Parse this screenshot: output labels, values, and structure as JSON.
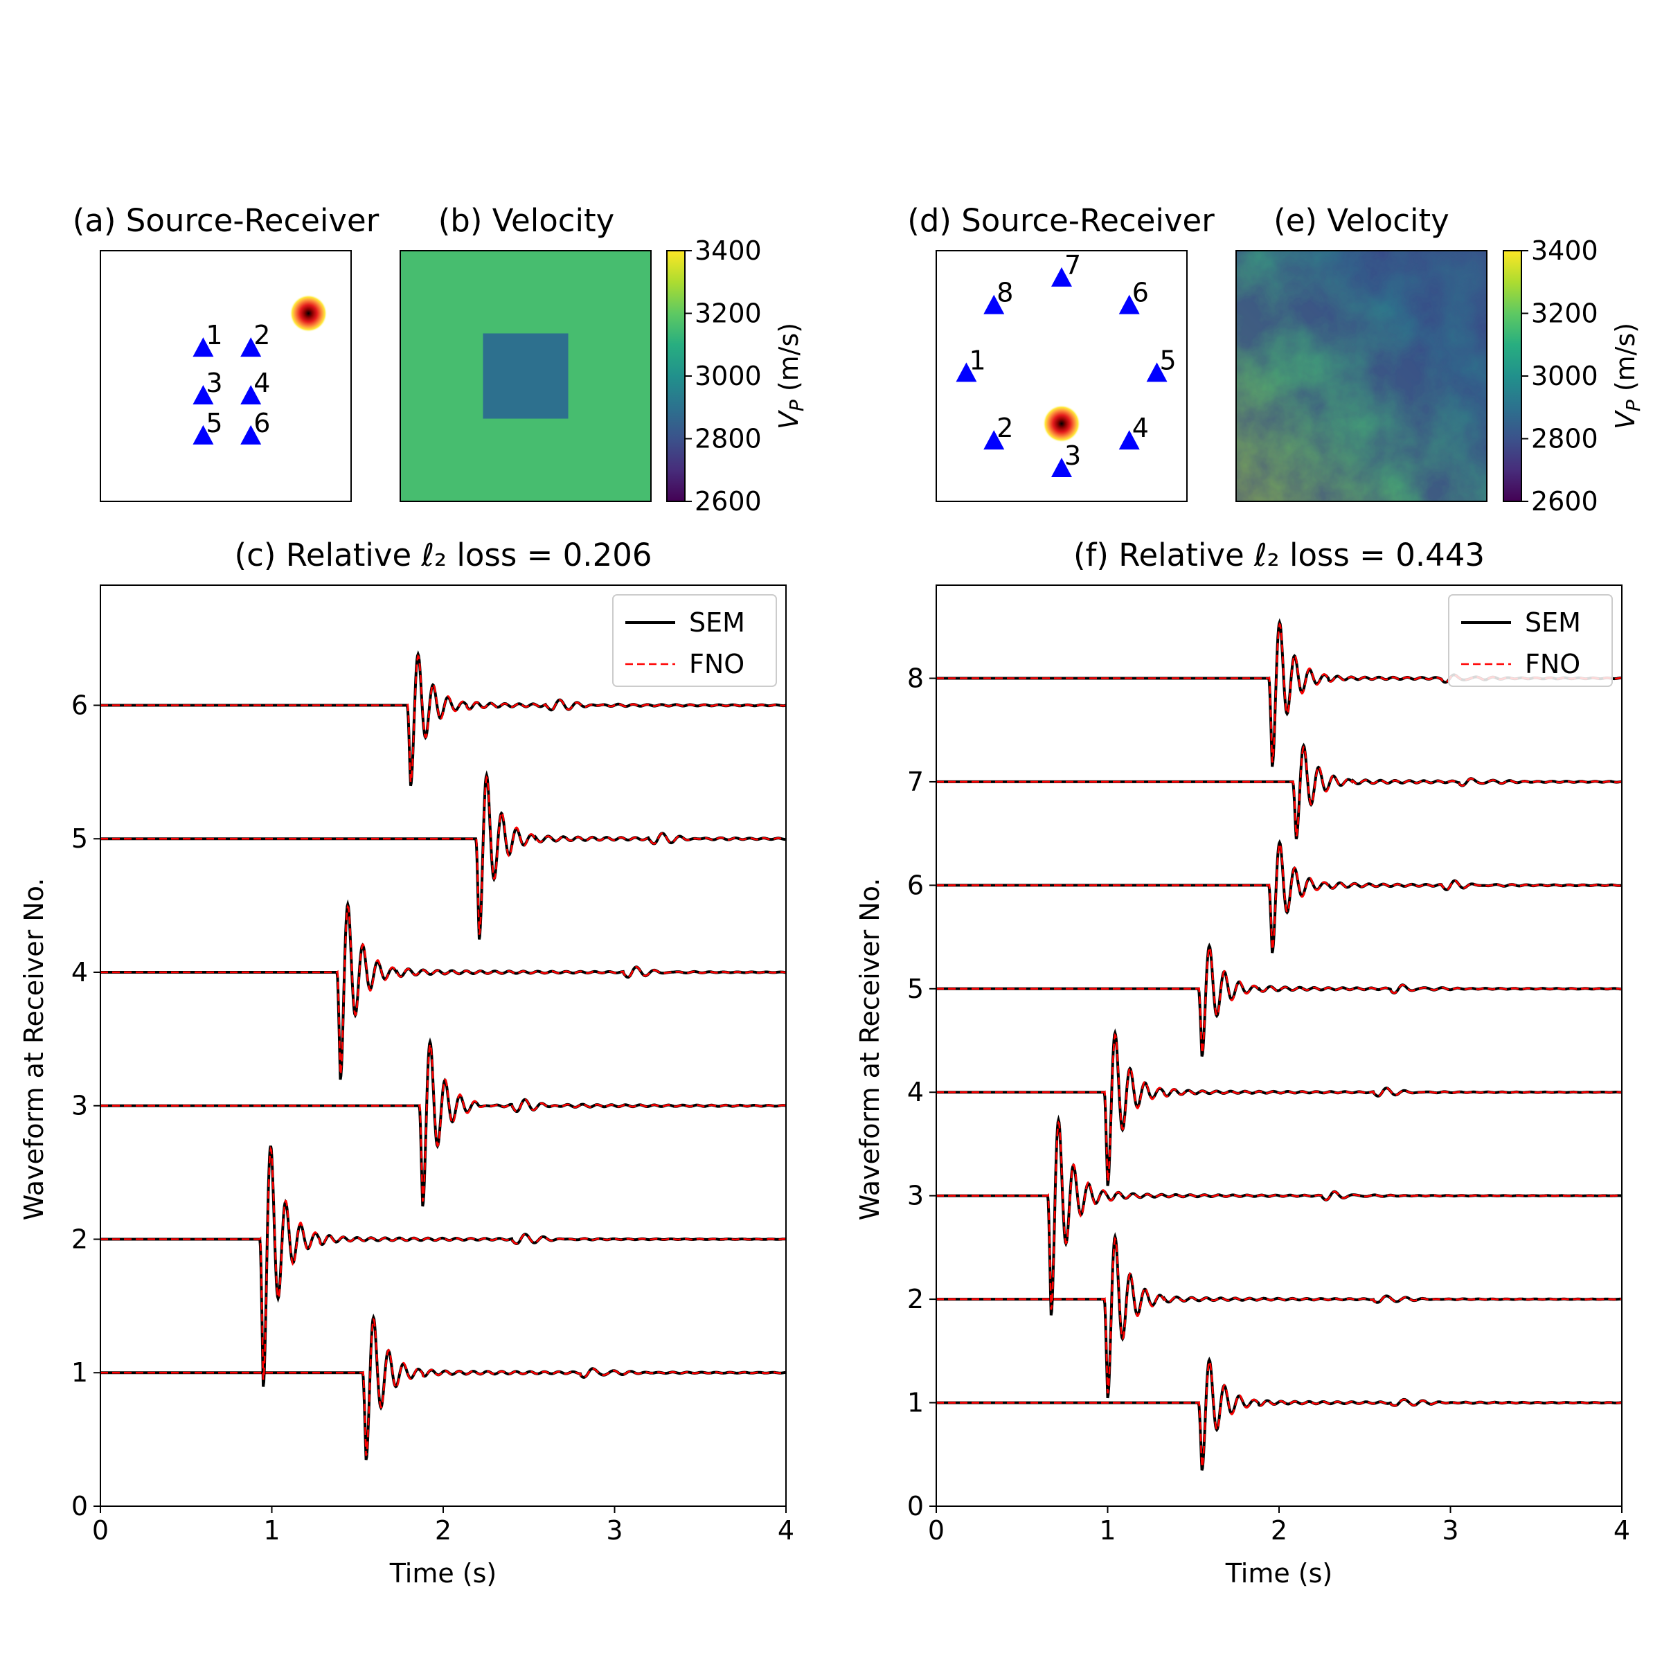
{
  "chart_data": [
    {
      "type": "scatter",
      "panel": "a",
      "title": "(a) Source-Receiver",
      "source": {
        "x": 0.83,
        "y": 0.75
      },
      "receivers": [
        {
          "label": "1",
          "x": 0.41,
          "y": 0.61
        },
        {
          "label": "2",
          "x": 0.6,
          "y": 0.61
        },
        {
          "label": "3",
          "x": 0.41,
          "y": 0.42
        },
        {
          "label": "4",
          "x": 0.6,
          "y": 0.42
        },
        {
          "label": "5",
          "x": 0.41,
          "y": 0.26
        },
        {
          "label": "6",
          "x": 0.6,
          "y": 0.26
        }
      ],
      "marker_color": "#0000ff"
    },
    {
      "type": "heatmap",
      "panel": "b",
      "title": "(b) Velocity",
      "background_value": 3000,
      "inclusion": {
        "x0": 0.33,
        "x1": 0.67,
        "y0": 0.33,
        "y1": 0.67,
        "value": 2800
      },
      "colorbar": {
        "label": "V_P (m/s)",
        "ticks": [
          "3400",
          "3200",
          "3000",
          "2800",
          "2600"
        ],
        "min": 2600,
        "max": 3400,
        "cmap": "viridis"
      }
    },
    {
      "type": "line",
      "panel": "c",
      "title": "(c) Relative ℓ₂ loss = 0.206",
      "xlabel": "Time (s)",
      "ylabel": "Waveform at Receiver No.",
      "xlim": [
        0,
        4
      ],
      "ylim": [
        0,
        6.9
      ],
      "xticks": [
        "0",
        "1",
        "2",
        "3",
        "4"
      ],
      "yticks": [
        "0",
        "1",
        "2",
        "3",
        "4",
        "5",
        "6"
      ],
      "legend": {
        "position": "top-right",
        "entries": [
          "SEM",
          "FNO"
        ]
      },
      "series": [
        {
          "name": "SEM",
          "color": "#000000",
          "style": "solid"
        },
        {
          "name": "FNO",
          "color": "#ff0000",
          "style": "dashed"
        }
      ],
      "traces": [
        {
          "receiver": 1,
          "arrival": 1.53,
          "amplitude": 0.65,
          "late_arrival": 2.85
        },
        {
          "receiver": 2,
          "arrival": 0.93,
          "amplitude": 1.1,
          "late_arrival": 2.45
        },
        {
          "receiver": 3,
          "arrival": 1.86,
          "amplitude": 0.75,
          "late_arrival": 2.45
        },
        {
          "receiver": 4,
          "arrival": 1.38,
          "amplitude": 0.8,
          "late_arrival": 3.1
        },
        {
          "receiver": 5,
          "arrival": 2.19,
          "amplitude": 0.75,
          "late_arrival": 3.25
        },
        {
          "receiver": 6,
          "arrival": 1.79,
          "amplitude": 0.6,
          "late_arrival": 2.65
        }
      ]
    },
    {
      "type": "scatter",
      "panel": "d",
      "title": "(d) Source-Receiver",
      "source": {
        "x": 0.5,
        "y": 0.31
      },
      "receivers": [
        {
          "label": "1",
          "x": 0.12,
          "y": 0.51
        },
        {
          "label": "2",
          "x": 0.23,
          "y": 0.24
        },
        {
          "label": "3",
          "x": 0.5,
          "y": 0.13
        },
        {
          "label": "4",
          "x": 0.77,
          "y": 0.24
        },
        {
          "label": "5",
          "x": 0.88,
          "y": 0.51
        },
        {
          "label": "6",
          "x": 0.77,
          "y": 0.78
        },
        {
          "label": "7",
          "x": 0.5,
          "y": 0.89
        },
        {
          "label": "8",
          "x": 0.23,
          "y": 0.78
        }
      ],
      "marker_color": "#0000ff"
    },
    {
      "type": "heatmap",
      "panel": "e",
      "title": "(e) Velocity",
      "field": "random",
      "colorbar": {
        "label": "V_P (m/s)",
        "ticks": [
          "3400",
          "3200",
          "3000",
          "2800",
          "2600"
        ],
        "min": 2600,
        "max": 3400,
        "cmap": "viridis"
      }
    },
    {
      "type": "line",
      "panel": "f",
      "title": "(f) Relative ℓ₂ loss = 0.443",
      "xlabel": "Time (s)",
      "ylabel": "Waveform at Receiver No.",
      "xlim": [
        0,
        4
      ],
      "ylim": [
        0,
        8.9
      ],
      "xticks": [
        "0",
        "1",
        "2",
        "3",
        "4"
      ],
      "yticks": [
        "0",
        "1",
        "2",
        "3",
        "4",
        "5",
        "6",
        "7",
        "8"
      ],
      "legend": {
        "position": "top-right",
        "entries": [
          "SEM",
          "FNO"
        ]
      },
      "series": [
        {
          "name": "SEM",
          "color": "#000000",
          "style": "solid"
        },
        {
          "name": "FNO",
          "color": "#ff0000",
          "style": "dashed"
        }
      ],
      "traces": [
        {
          "receiver": 1,
          "arrival": 1.53,
          "amplitude": 0.65,
          "late_arrival": 2.7
        },
        {
          "receiver": 2,
          "arrival": 0.98,
          "amplitude": 0.95,
          "late_arrival": 2.6
        },
        {
          "receiver": 3,
          "arrival": 0.65,
          "amplitude": 1.15,
          "late_arrival": 2.3
        },
        {
          "receiver": 4,
          "arrival": 0.98,
          "amplitude": 0.9,
          "late_arrival": 2.6
        },
        {
          "receiver": 5,
          "arrival": 1.53,
          "amplitude": 0.65,
          "late_arrival": 2.7
        },
        {
          "receiver": 6,
          "arrival": 1.94,
          "amplitude": 0.65,
          "late_arrival": 3.0
        },
        {
          "receiver": 7,
          "arrival": 2.08,
          "amplitude": 0.55,
          "late_arrival": 3.1
        },
        {
          "receiver": 8,
          "arrival": 1.94,
          "amplitude": 0.85,
          "late_arrival": 3.0
        }
      ]
    }
  ]
}
